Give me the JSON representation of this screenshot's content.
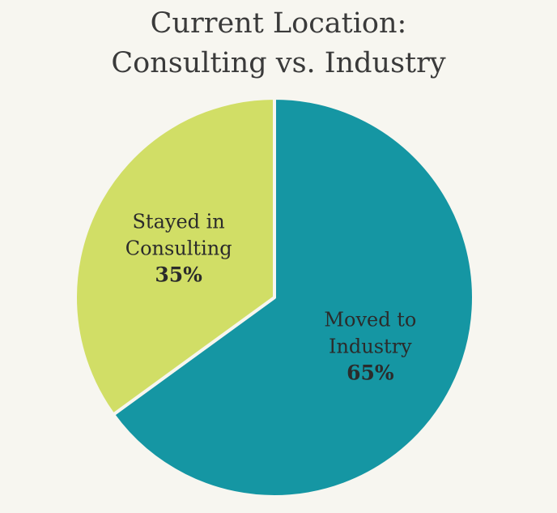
{
  "chart_data": {
    "type": "pie",
    "title": [
      "Current Location:",
      "Consulting vs. Industry"
    ],
    "slices": [
      {
        "label_lines": [
          "Moved to",
          "Industry"
        ],
        "value": 65,
        "value_label": "65%",
        "color": "#1596a3"
      },
      {
        "label_lines": [
          "Stayed in",
          "Consulting"
        ],
        "value": 35,
        "value_label": "35%",
        "color": "#d1de66"
      }
    ],
    "start": "12 o'clock",
    "direction": "clockwise",
    "legend": "none"
  },
  "colors": {
    "background": "#f7f6f0",
    "separator": "#f7f6f0"
  }
}
